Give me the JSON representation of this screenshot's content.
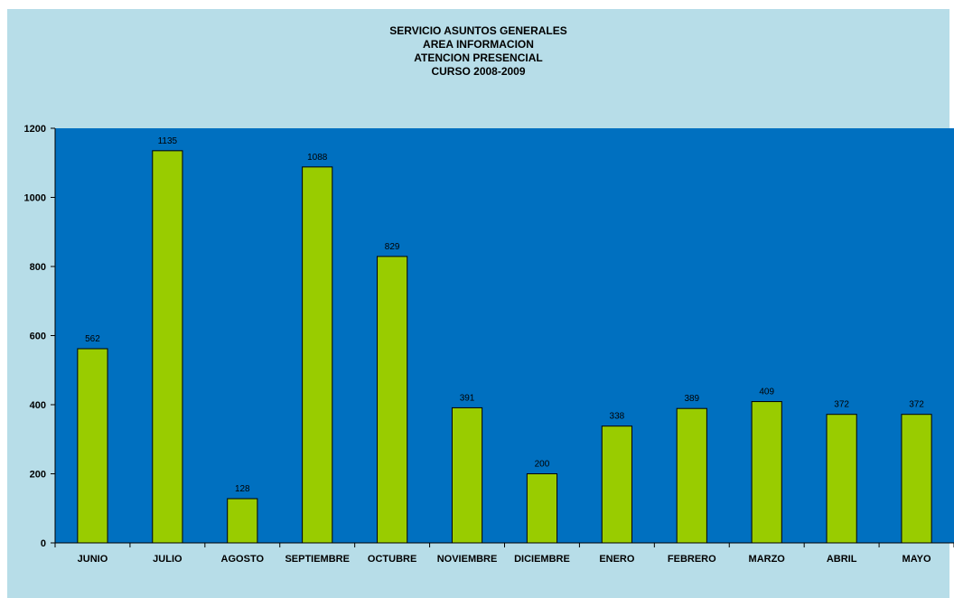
{
  "colors": {
    "chart_area": "#b7dde8",
    "plot_area": "#0070c0",
    "bar_fill": "#99cc00",
    "bar_stroke": "#000000"
  },
  "chart_data": {
    "type": "bar",
    "title_lines": [
      "SERVICIO ASUNTOS GENERALES",
      "AREA INFORMACION",
      "ATENCION PRESENCIAL",
      "CURSO 2008-2009"
    ],
    "categories": [
      "JUNIO",
      "JULIO",
      "AGOSTO",
      "SEPTIEMBRE",
      "OCTUBRE",
      "NOVIEMBRE",
      "DICIEMBRE",
      "ENERO",
      "FEBRERO",
      "MARZO",
      "ABRIL",
      "MAYO"
    ],
    "values": [
      562,
      1135,
      128,
      1088,
      829,
      391,
      200,
      338,
      389,
      409,
      372,
      372
    ],
    "ylim": [
      0,
      1200
    ],
    "yticks": [
      0,
      200,
      400,
      600,
      800,
      1000,
      1200
    ],
    "grid": false,
    "legend": "none",
    "data_labels": true
  }
}
